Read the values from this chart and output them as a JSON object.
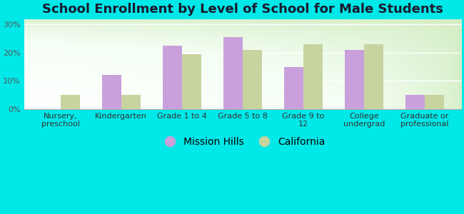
{
  "title": "School Enrollment by Level of School for Male Students",
  "categories": [
    "Nursery,\npreschool",
    "Kindergarten",
    "Grade 1 to 4",
    "Grade 5 to 8",
    "Grade 9 to\n12",
    "College\nundergrad",
    "Graduate or\nprofessional"
  ],
  "mission_hills": [
    0,
    12,
    22.5,
    25.5,
    15,
    21,
    5
  ],
  "california": [
    5,
    5,
    19.5,
    21,
    23,
    23,
    5
  ],
  "bar_color_mh": "#c9a0dc",
  "bar_color_ca": "#c8d4a0",
  "background_color": "#00e8e8",
  "ylabel_ticks": [
    "0%",
    "10%",
    "20%",
    "30%"
  ],
  "yticks": [
    0,
    10,
    20,
    30
  ],
  "ylim": [
    0,
    32
  ],
  "legend_mh": "Mission Hills",
  "legend_ca": "California",
  "title_fontsize": 13,
  "tick_fontsize": 8,
  "legend_fontsize": 10,
  "bar_width": 0.32
}
